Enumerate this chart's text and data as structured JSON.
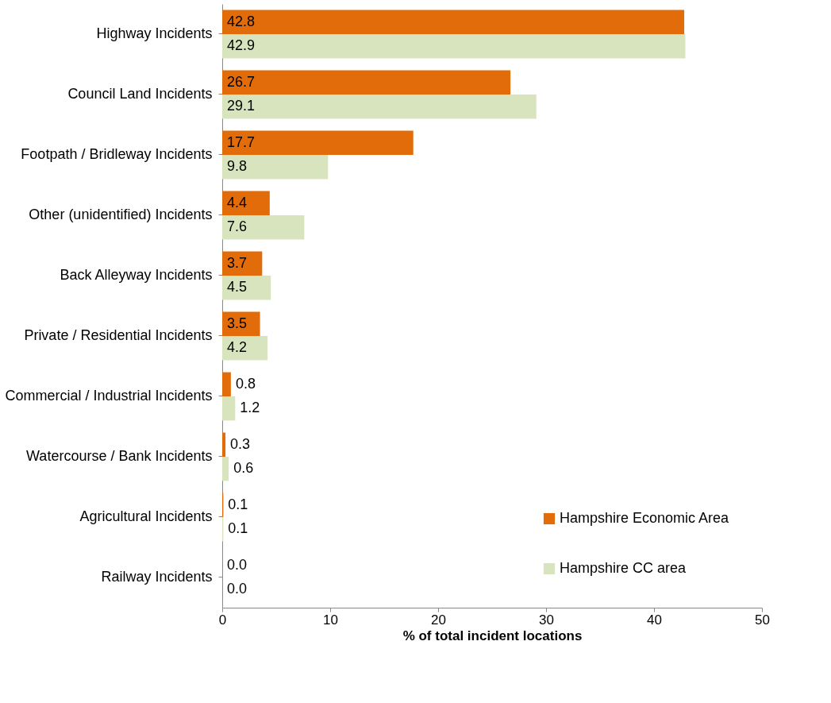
{
  "chart_data": {
    "type": "bar",
    "orientation": "horizontal",
    "xlabel": "% of total incident locations",
    "categories": [
      "Highway Incidents",
      "Council Land Incidents",
      "Footpath / Bridleway Incidents",
      "Other (unidentified) Incidents",
      "Back Alleyway Incidents",
      "Private / Residential Incidents",
      "Commercial / Industrial Incidents",
      "Watercourse / Bank Incidents",
      "Agricultural Incidents",
      "Railway Incidents"
    ],
    "series": [
      {
        "name": "Hampshire Economic Area",
        "color": "#e36c0a",
        "values": [
          42.8,
          26.7,
          17.7,
          4.4,
          3.7,
          3.5,
          0.8,
          0.3,
          0.1,
          0.0
        ],
        "value_labels": [
          "42.8",
          "26.7",
          "17.7",
          "4.4",
          "3.7",
          "3.5",
          "0.8",
          "0.3",
          "0.1",
          "0.0"
        ]
      },
      {
        "name": "Hampshire CC area",
        "color": "#d7e4bd",
        "values": [
          42.9,
          29.1,
          9.8,
          7.6,
          4.5,
          4.2,
          1.2,
          0.6,
          0.1,
          0.0
        ],
        "value_labels": [
          "42.9",
          "29.1",
          "9.8",
          "7.6",
          "4.5",
          "4.2",
          "1.2",
          "0.6",
          "0.1",
          "0.0"
        ]
      }
    ],
    "xlim": [
      0,
      50
    ],
    "xticks": [
      0,
      10,
      20,
      30,
      40,
      50
    ],
    "grid": false,
    "legend": "bottom right"
  }
}
